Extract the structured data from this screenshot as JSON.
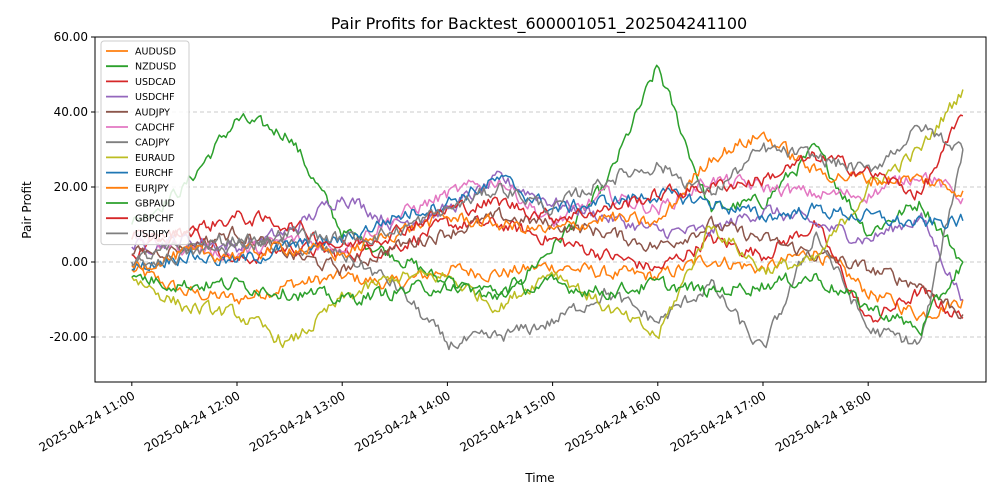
{
  "chart_data": {
    "type": "line",
    "title": "Pair Profits for Backtest_600001051_202504241100",
    "xlabel": "Time",
    "ylabel": "Pair Profit",
    "ylim": [
      -32,
      60
    ],
    "yticks": [
      "-20.00",
      "0.00",
      "20.00",
      "40.00",
      "60.00"
    ],
    "ytick_values": [
      -20,
      0,
      20,
      40,
      60
    ],
    "xlim": [
      -0.35,
      8.12
    ],
    "xticks": [
      "2025-04-24 11:00",
      "2025-04-24 12:00",
      "2025-04-24 13:00",
      "2025-04-24 14:00",
      "2025-04-24 15:00",
      "2025-04-24 16:00",
      "2025-04-24 17:00",
      "2025-04-24 18:00"
    ],
    "grid": "y-dashed",
    "legend_position": "top-left",
    "x_hours": [
      0,
      0.5,
      1,
      1.5,
      2,
      2.5,
      3,
      3.5,
      4,
      4.5,
      5,
      5.5,
      6,
      6.5,
      7,
      7.5,
      7.9
    ],
    "series": [
      {
        "name": "AUDUSD",
        "color": "#ff7f0e",
        "values": [
          -2,
          -8,
          -10,
          -6,
          -4,
          -6,
          -2,
          -3,
          -1,
          -3,
          -4,
          1,
          -2,
          3,
          -8,
          -14,
          -10
        ]
      },
      {
        "name": "NZDUSD",
        "color": "#2ca02c",
        "values": [
          10,
          20,
          38,
          34,
          8,
          2,
          -6,
          -10,
          4,
          20,
          52,
          14,
          16,
          30,
          8,
          16,
          0
        ]
      },
      {
        "name": "USDCAD",
        "color": "#d62728",
        "values": [
          2,
          10,
          0,
          4,
          2,
          4,
          10,
          10,
          6,
          2,
          -2,
          6,
          2,
          10,
          -16,
          -8,
          -15
        ]
      },
      {
        "name": "USDCHF",
        "color": "#9467bd",
        "values": [
          4,
          6,
          4,
          8,
          18,
          10,
          14,
          22,
          16,
          12,
          8,
          8,
          14,
          10,
          6,
          12,
          -10
        ]
      },
      {
        "name": "AUDJPY",
        "color": "#8c564b",
        "values": [
          2,
          4,
          8,
          2,
          -2,
          4,
          8,
          12,
          10,
          8,
          4,
          10,
          6,
          2,
          -2,
          -6,
          -14
        ]
      },
      {
        "name": "CADCHF",
        "color": "#e377c2",
        "values": [
          6,
          4,
          2,
          6,
          4,
          12,
          18,
          22,
          10,
          18,
          14,
          22,
          20,
          18,
          18,
          24,
          17
        ]
      },
      {
        "name": "CADJPY",
        "color": "#7f7f7f",
        "values": [
          0,
          4,
          6,
          4,
          2,
          -6,
          -22,
          -20,
          -16,
          -8,
          -16,
          -6,
          -24,
          8,
          -18,
          -22,
          30
        ]
      },
      {
        "name": "EURAUD",
        "color": "#bcbd22",
        "values": [
          -4,
          -12,
          -14,
          -22,
          -10,
          -4,
          -4,
          -12,
          -2,
          -12,
          -20,
          10,
          -2,
          0,
          20,
          30,
          46
        ]
      },
      {
        "name": "EURCHF",
        "color": "#1f77b4",
        "values": [
          -2,
          2,
          0,
          4,
          6,
          12,
          16,
          22,
          14,
          16,
          18,
          16,
          12,
          14,
          12,
          10,
          11
        ]
      },
      {
        "name": "EURJPY",
        "color": "#ff7f0e",
        "values": [
          -1,
          2,
          2,
          4,
          2,
          8,
          12,
          10,
          8,
          12,
          10,
          28,
          34,
          24,
          22,
          22,
          19
        ]
      },
      {
        "name": "GBPAUD",
        "color": "#2ca02c",
        "values": [
          -4,
          -6,
          -6,
          -8,
          -10,
          -8,
          -6,
          -8,
          -6,
          -8,
          -6,
          -8,
          -6,
          -4,
          -12,
          -18,
          0
        ]
      },
      {
        "name": "GBPCHF",
        "color": "#d62728",
        "values": [
          6,
          8,
          12,
          10,
          4,
          8,
          14,
          16,
          12,
          14,
          18,
          20,
          22,
          28,
          24,
          18,
          39
        ]
      },
      {
        "name": "USDJPY",
        "color": "#7f7f7f",
        "values": [
          -1,
          2,
          4,
          8,
          6,
          8,
          14,
          20,
          14,
          22,
          26,
          18,
          30,
          28,
          24,
          36,
          30
        ]
      }
    ]
  }
}
